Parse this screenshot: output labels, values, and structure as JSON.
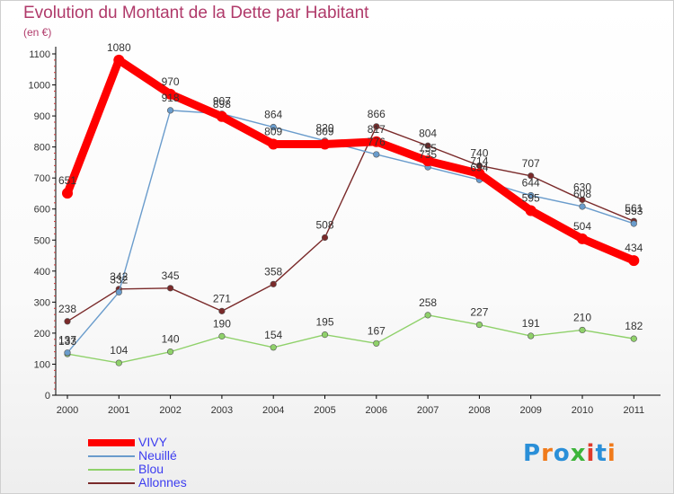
{
  "title": "Evolution du Montant de la Dette par Habitant",
  "subtitle": "(en €)",
  "brand": {
    "text": "Proxiti",
    "letter_colors": [
      "#2a8fd8",
      "#f07a1a",
      "#2a8fd8",
      "#3db43a",
      "#e03a2a",
      "#2a8fd8",
      "#f07a1a"
    ]
  },
  "chart_data": {
    "type": "line",
    "title": "Evolution du Montant de la Dette par Habitant",
    "ylabel": "(en €)",
    "xlabel": "",
    "x": [
      "2000",
      "2001",
      "2002",
      "2003",
      "2004",
      "2005",
      "2006",
      "2007",
      "2008",
      "2009",
      "2010",
      "2011"
    ],
    "ylim": [
      0,
      1100
    ],
    "yticks": [
      0,
      100,
      200,
      300,
      400,
      500,
      600,
      700,
      800,
      900,
      1000,
      1100
    ],
    "grid": false,
    "legend_position": "bottom-left",
    "series": [
      {
        "name": "VIVY",
        "color": "#ff0000",
        "values": [
          651,
          1080,
          970,
          898,
          809,
          809,
          817,
          755,
          714,
          595,
          504,
          434
        ],
        "labels": [
          "651",
          "1080",
          "970",
          "898",
          "809",
          "809",
          "817",
          "755",
          "714",
          "595",
          "504",
          "434"
        ]
      },
      {
        "name": "Neuillé",
        "color": "#6a9ccc",
        "values": [
          137,
          332,
          918,
          907,
          864,
          820,
          776,
          735,
          694,
          644,
          608,
          553
        ],
        "labels": [
          "137",
          "332",
          "918",
          "907",
          "864",
          "820",
          "776",
          "735",
          "694",
          "644",
          "608",
          "553"
        ]
      },
      {
        "name": "Blou",
        "color": "#8fd16a",
        "values": [
          133,
          104,
          140,
          190,
          154,
          195,
          167,
          258,
          227,
          191,
          210,
          182
        ],
        "labels": [
          "133",
          "104",
          "140",
          "190",
          "154",
          "195",
          "167",
          "258",
          "227",
          "191",
          "210",
          "182"
        ]
      },
      {
        "name": "Allonnes",
        "color": "#7a2a2a",
        "values": [
          238,
          342,
          345,
          271,
          358,
          508,
          866,
          804,
          740,
          707,
          630,
          561
        ],
        "labels": [
          "238",
          "342",
          "345",
          "271",
          "358",
          "508",
          "866",
          "804",
          "740",
          "707",
          "630",
          "561"
        ]
      }
    ]
  }
}
